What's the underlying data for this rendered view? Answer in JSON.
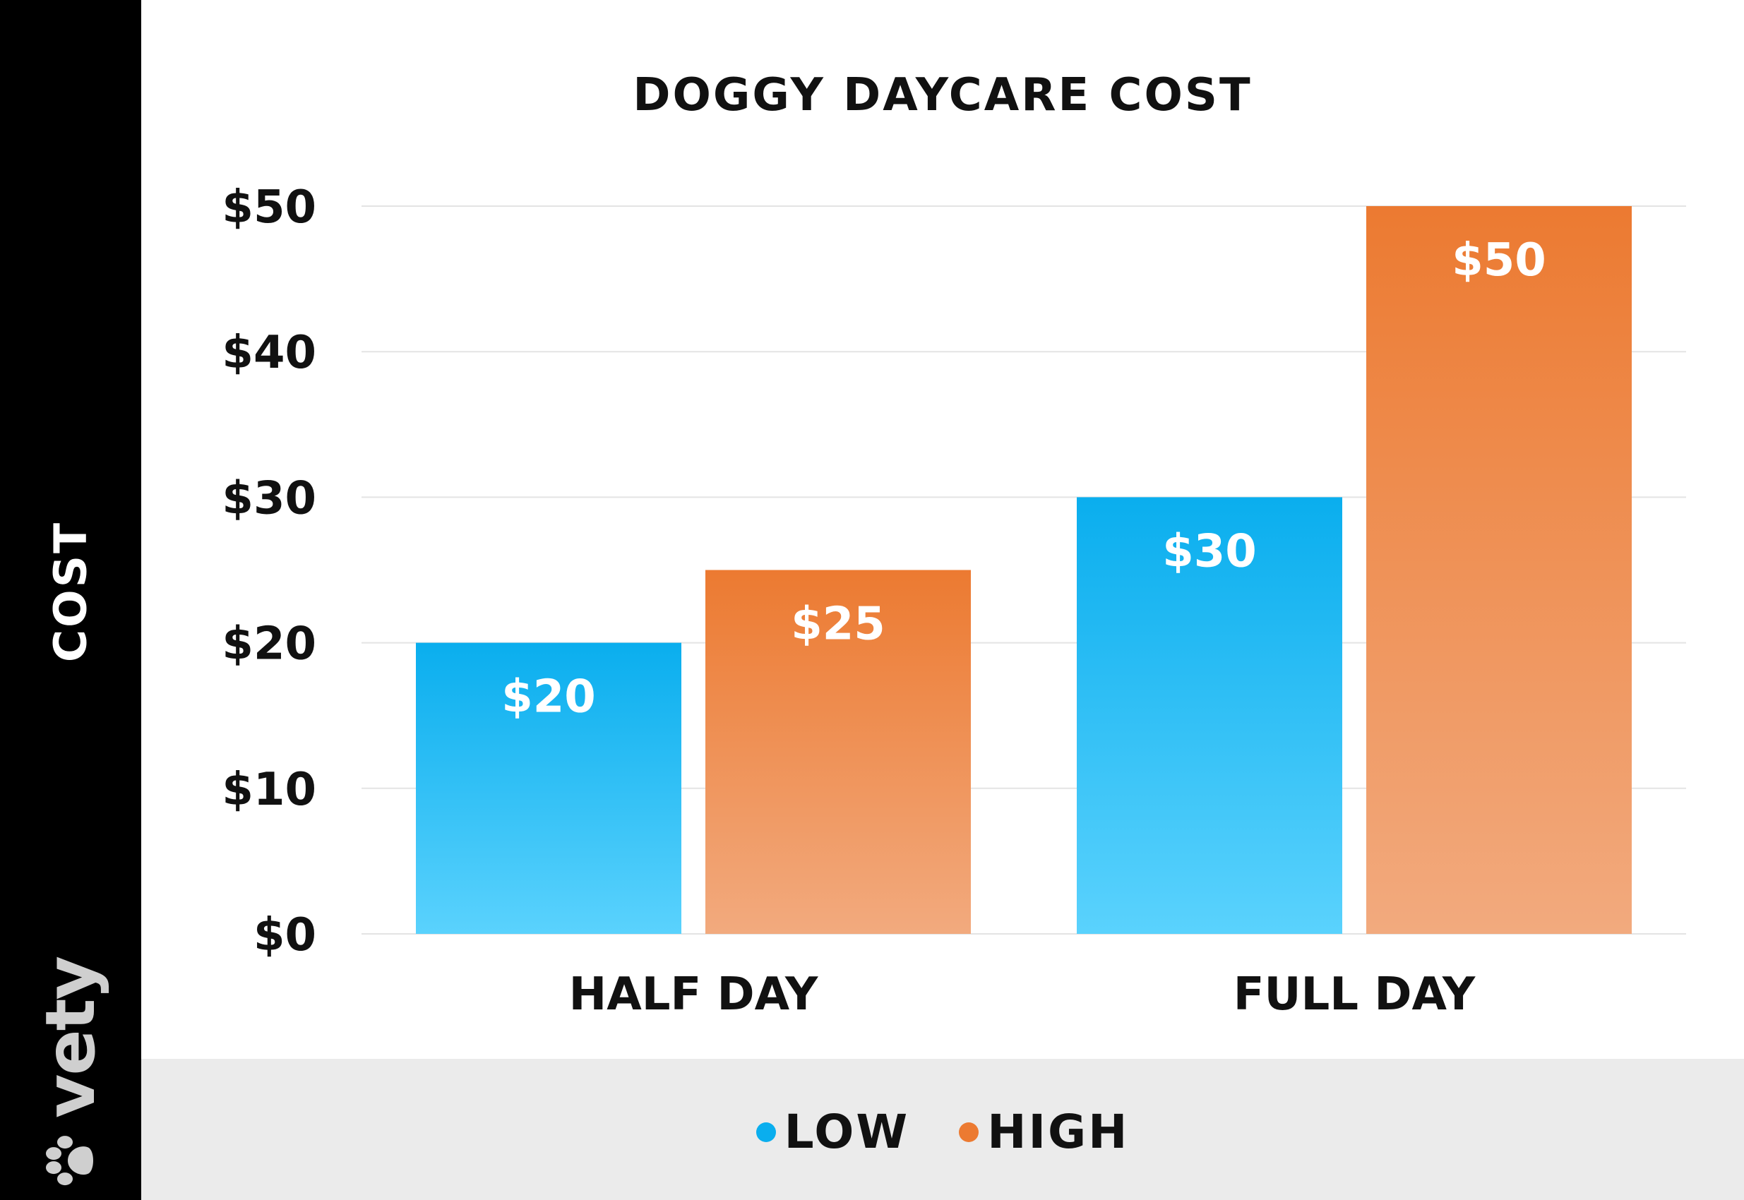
{
  "brand": {
    "name": "vety",
    "icon": "paw-icon"
  },
  "chart_data": {
    "type": "bar",
    "title": "DOGGY DAYCARE COST",
    "xlabel": "",
    "ylabel": "COST",
    "categories": [
      "HALF DAY",
      "FULL DAY"
    ],
    "series": [
      {
        "name": "LOW",
        "values": [
          20,
          30
        ],
        "labels": [
          "$20",
          "$30"
        ]
      },
      {
        "name": "HIGH",
        "values": [
          25,
          50
        ],
        "labels": [
          "$25",
          "$50"
        ]
      }
    ],
    "ylim": [
      0,
      50
    ],
    "yticks": [
      0,
      10,
      20,
      30,
      40,
      50
    ],
    "ytick_labels": [
      "$0",
      "$10",
      "$20",
      "$30",
      "$40",
      "$50"
    ],
    "grid": true,
    "legend_position": "bottom-center",
    "colors": {
      "LOW": [
        "#0aaeee",
        "#5ad2fd"
      ],
      "HIGH": [
        "#ec7a31",
        "#f2aa7e"
      ]
    }
  }
}
